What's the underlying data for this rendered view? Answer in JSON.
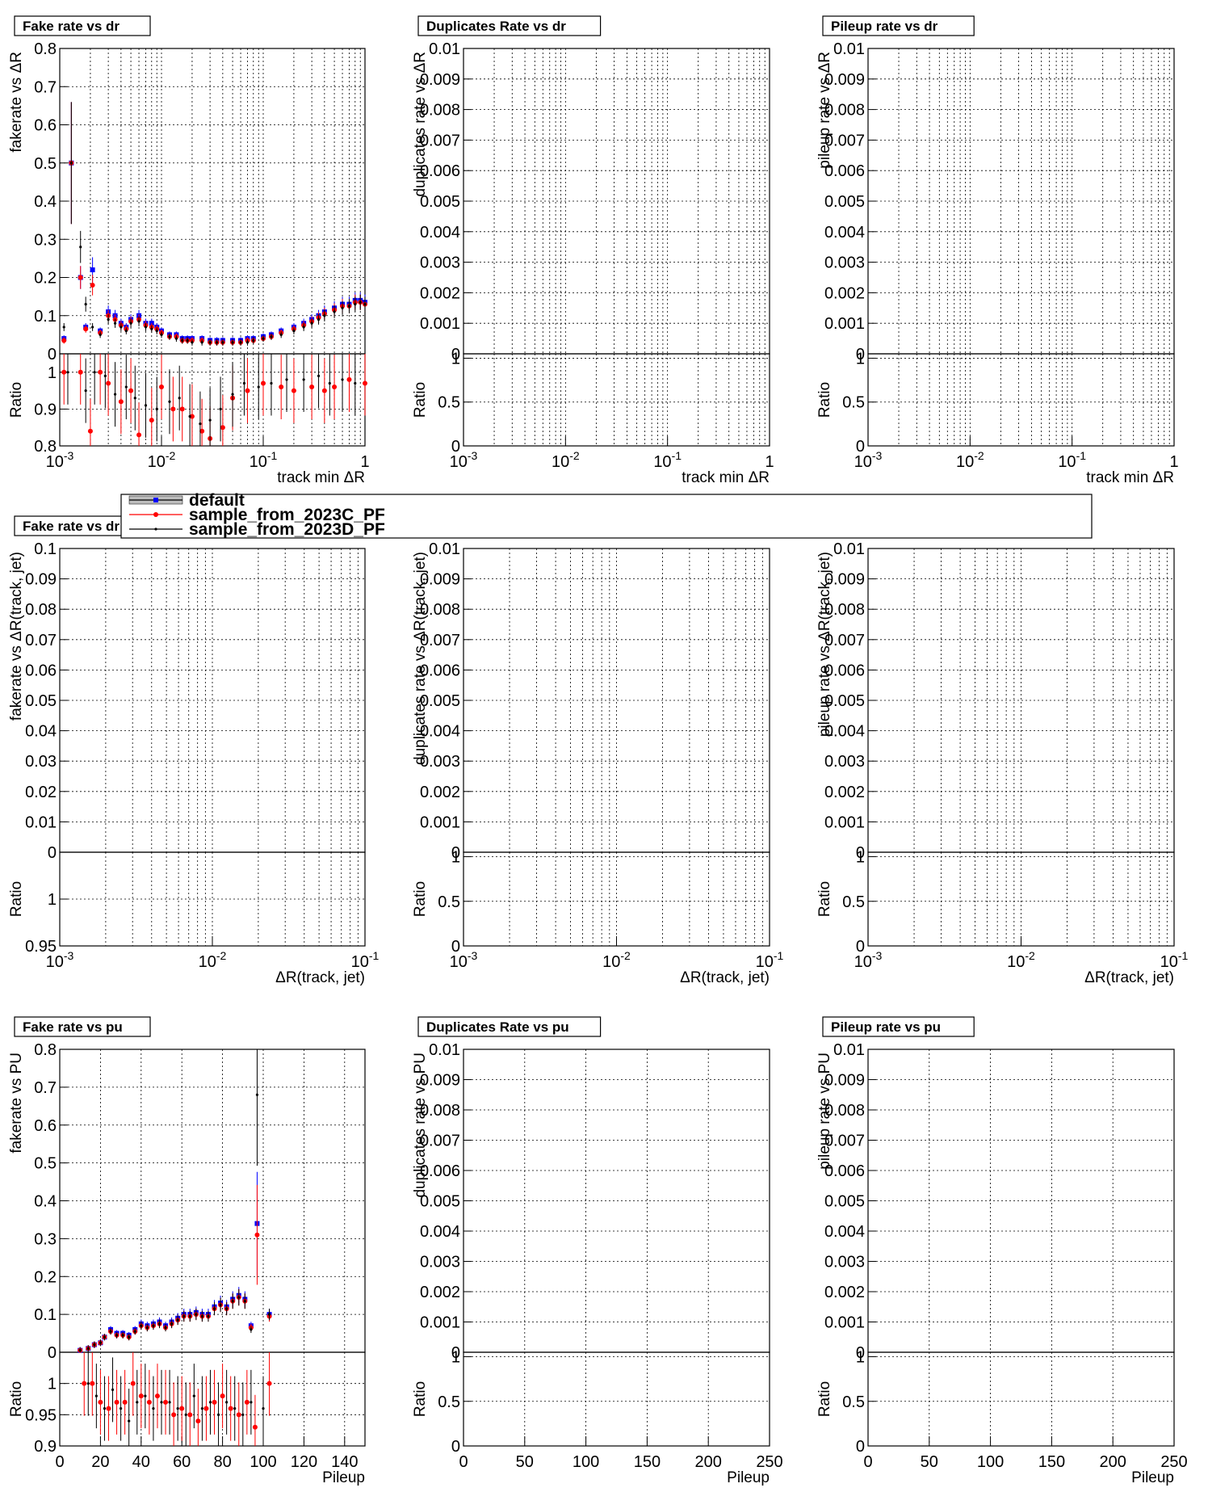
{
  "legend": {
    "entries": [
      "default",
      "sample_from_2023C_PF",
      "sample_from_2023D_PF"
    ]
  },
  "chart_data": [
    {
      "id": "p11",
      "type": "scatter",
      "title": "Fake rate vs dr",
      "xlabel": "track min  ΔR",
      "ylabel": "fakerate vs  ΔR",
      "xlog": true,
      "xlim": [
        0.001,
        1
      ],
      "ylim": [
        0,
        0.8
      ],
      "yticks": [
        0,
        0.1,
        0.2,
        0.3,
        0.4,
        0.5,
        0.6,
        0.7,
        0.8
      ],
      "xticks": [
        "10^-3",
        "10^-2",
        "10^-1",
        "1"
      ],
      "ratio": {
        "ylabel": "Ratio",
        "ylim": [
          0.8,
          1.05
        ],
        "yticks": [
          0.8,
          0.9,
          1
        ]
      },
      "series": [
        {
          "name": "default",
          "color": "#0000ff",
          "x": [
            0.0011,
            0.0013,
            0.0016,
            0.0018,
            0.0021,
            0.0025,
            0.003,
            0.0035,
            0.004,
            0.0045,
            0.005,
            0.006,
            0.007,
            0.008,
            0.009,
            0.01,
            0.012,
            0.014,
            0.016,
            0.018,
            0.02,
            0.025,
            0.03,
            0.035,
            0.04,
            0.05,
            0.06,
            0.07,
            0.08,
            0.1,
            0.12,
            0.15,
            0.2,
            0.25,
            0.3,
            0.35,
            0.4,
            0.5,
            0.6,
            0.7,
            0.8,
            0.9,
            1.0
          ],
          "y": [
            0.04,
            0.5,
            0.2,
            0.07,
            0.22,
            0.06,
            0.11,
            0.1,
            0.08,
            0.07,
            0.09,
            0.1,
            0.08,
            0.08,
            0.07,
            0.06,
            0.05,
            0.05,
            0.04,
            0.04,
            0.04,
            0.04,
            0.035,
            0.035,
            0.035,
            0.035,
            0.035,
            0.04,
            0.04,
            0.045,
            0.05,
            0.06,
            0.07,
            0.08,
            0.09,
            0.1,
            0.11,
            0.12,
            0.13,
            0.13,
            0.14,
            0.14,
            0.135
          ]
        },
        {
          "name": "sample_from_2023C_PF",
          "color": "#ff0000",
          "x": [
            0.0011,
            0.0013,
            0.0016,
            0.0018,
            0.0021,
            0.0025,
            0.003,
            0.0035,
            0.004,
            0.0045,
            0.005,
            0.006,
            0.007,
            0.008,
            0.009,
            0.01,
            0.012,
            0.014,
            0.016,
            0.018,
            0.02,
            0.025,
            0.03,
            0.035,
            0.04,
            0.05,
            0.06,
            0.07,
            0.08,
            0.1,
            0.12,
            0.15,
            0.2,
            0.25,
            0.3,
            0.35,
            0.4,
            0.5,
            0.6,
            0.7,
            0.8,
            0.9,
            1.0
          ],
          "y": [
            0.035,
            0.5,
            0.2,
            0.065,
            0.18,
            0.055,
            0.1,
            0.09,
            0.075,
            0.065,
            0.085,
            0.09,
            0.075,
            0.07,
            0.065,
            0.055,
            0.045,
            0.045,
            0.035,
            0.035,
            0.035,
            0.035,
            0.03,
            0.03,
            0.03,
            0.03,
            0.03,
            0.035,
            0.035,
            0.04,
            0.045,
            0.055,
            0.065,
            0.075,
            0.085,
            0.095,
            0.105,
            0.115,
            0.125,
            0.125,
            0.135,
            0.135,
            0.13
          ]
        },
        {
          "name": "sample_from_2023D_PF",
          "color": "#000000",
          "x": [
            0.0011,
            0.0013,
            0.0016,
            0.0018,
            0.0021,
            0.0025,
            0.003,
            0.0035,
            0.004,
            0.0045,
            0.005,
            0.006,
            0.007,
            0.008,
            0.009,
            0.01,
            0.012,
            0.014,
            0.016,
            0.018,
            0.02,
            0.025,
            0.03,
            0.035,
            0.04,
            0.05,
            0.06,
            0.07,
            0.08,
            0.1,
            0.12,
            0.15,
            0.2,
            0.25,
            0.3,
            0.35,
            0.4,
            0.5,
            0.6,
            0.7,
            0.8,
            0.9,
            1.0
          ],
          "y": [
            0.07,
            0.5,
            0.28,
            0.13,
            0.07,
            0.05,
            0.09,
            0.08,
            0.07,
            0.06,
            0.08,
            0.085,
            0.07,
            0.065,
            0.06,
            0.05,
            0.045,
            0.04,
            0.035,
            0.035,
            0.03,
            0.03,
            0.03,
            0.03,
            0.03,
            0.03,
            0.03,
            0.03,
            0.035,
            0.04,
            0.045,
            0.05,
            0.06,
            0.07,
            0.08,
            0.09,
            0.1,
            0.11,
            0.12,
            0.125,
            0.13,
            0.135,
            0.13
          ]
        }
      ],
      "ratio_series": [
        {
          "name": "sample_from_2023C_PF",
          "color": "#ff0000",
          "x": [
            0.0011,
            0.0016,
            0.002,
            0.0025,
            0.003,
            0.004,
            0.005,
            0.006,
            0.008,
            0.01,
            0.013,
            0.016,
            0.02,
            0.025,
            0.03,
            0.04,
            0.05,
            0.07,
            0.1,
            0.15,
            0.2,
            0.3,
            0.4,
            0.5,
            0.7,
            1.0
          ],
          "y": [
            1.0,
            1.0,
            0.84,
            1.0,
            0.97,
            0.92,
            0.95,
            0.83,
            0.87,
            0.96,
            0.9,
            0.9,
            0.88,
            0.84,
            0.82,
            0.85,
            0.93,
            0.95,
            0.97,
            0.96,
            0.95,
            0.96,
            0.95,
            0.96,
            0.98,
            0.97
          ]
        },
        {
          "name": "sample_from_2023D_PF",
          "color": "#000000",
          "x": [
            0.0012,
            0.0018,
            0.0022,
            0.0028,
            0.0035,
            0.0045,
            0.0055,
            0.007,
            0.009,
            0.012,
            0.015,
            0.019,
            0.024,
            0.03,
            0.038,
            0.05,
            0.065,
            0.09,
            0.12,
            0.17,
            0.25,
            0.35,
            0.45,
            0.6,
            0.8
          ],
          "y": [
            1.0,
            0.95,
            1.0,
            0.99,
            0.94,
            0.96,
            0.93,
            0.91,
            0.9,
            0.92,
            0.93,
            0.88,
            0.86,
            0.87,
            0.9,
            0.94,
            0.97,
            0.96,
            0.97,
            0.98,
            0.98,
            0.99,
            0.97,
            0.98,
            0.97
          ]
        }
      ]
    },
    {
      "id": "p12",
      "type": "scatter",
      "title": "Duplicates Rate vs dr",
      "xlabel": "track min  ΔR",
      "ylabel": "duplicates rate vs  ΔR",
      "xlog": true,
      "xlim": [
        0.001,
        1
      ],
      "ylim": [
        0,
        0.01
      ],
      "yticks": [
        0,
        0.001,
        0.002,
        0.003,
        0.004,
        0.005,
        0.006,
        0.007,
        0.008,
        0.009,
        0.01
      ],
      "xticks": [
        "10^-3",
        "10^-2",
        "10^-1",
        "1"
      ],
      "ratio": {
        "ylabel": "Ratio",
        "ylim": [
          0,
          1.05
        ],
        "yticks": [
          0,
          0.5,
          1
        ]
      },
      "series": []
    },
    {
      "id": "p13",
      "type": "scatter",
      "title": "Pileup rate vs dr",
      "xlabel": "track min  ΔR",
      "ylabel": "pileup rate vs  ΔR",
      "xlog": true,
      "xlim": [
        0.001,
        1
      ],
      "ylim": [
        0,
        0.01
      ],
      "yticks": [
        0,
        0.001,
        0.002,
        0.003,
        0.004,
        0.005,
        0.006,
        0.007,
        0.008,
        0.009,
        0.01
      ],
      "xticks": [
        "10^-3",
        "10^-2",
        "10^-1",
        "1"
      ],
      "ratio": {
        "ylabel": "Ratio",
        "ylim": [
          0,
          1.05
        ],
        "yticks": [
          0,
          0.5,
          1
        ]
      },
      "series": []
    },
    {
      "id": "p21",
      "type": "scatter",
      "title": "Fake rate vs dr",
      "xlabel": "ΔR(track, jet)",
      "ylabel": "fakerate vs  ΔR(track, jet)",
      "xlog": true,
      "xlim": [
        0.001,
        0.1
      ],
      "ylim": [
        0,
        0.1
      ],
      "yticks": [
        0,
        0.01,
        0.02,
        0.03,
        0.04,
        0.05,
        0.06,
        0.07,
        0.08,
        0.09,
        0.1
      ],
      "xticks": [
        "10^-3",
        "10^-2",
        "10^-1"
      ],
      "ratio": {
        "ylabel": "Ratio",
        "ylim": [
          0.95,
          1.05
        ],
        "yticks": [
          0.95,
          1
        ]
      },
      "series": []
    },
    {
      "id": "p22",
      "type": "scatter",
      "title": "Duplicates Rate vs dr",
      "xlabel": "ΔR(track, jet)",
      "ylabel": "duplicates rate vs  ΔR(track, jet)",
      "xlog": true,
      "xlim": [
        0.001,
        0.1
      ],
      "ylim": [
        0,
        0.01
      ],
      "yticks": [
        0,
        0.001,
        0.002,
        0.003,
        0.004,
        0.005,
        0.006,
        0.007,
        0.008,
        0.009,
        0.01
      ],
      "xticks": [
        "10^-3",
        "10^-2",
        "10^-1"
      ],
      "ratio": {
        "ylabel": "Ratio",
        "ylim": [
          0,
          1.05
        ],
        "yticks": [
          0,
          0.5,
          1
        ]
      },
      "series": []
    },
    {
      "id": "p23",
      "type": "scatter",
      "title": "Pileup rate vs dr",
      "xlabel": "ΔR(track, jet)",
      "ylabel": "pileup rate vs  ΔR(track, jet)",
      "xlog": true,
      "xlim": [
        0.001,
        0.1
      ],
      "ylim": [
        0,
        0.01
      ],
      "yticks": [
        0,
        0.001,
        0.002,
        0.003,
        0.004,
        0.005,
        0.006,
        0.007,
        0.008,
        0.009,
        0.01
      ],
      "xticks": [
        "10^-3",
        "10^-2",
        "10^-1"
      ],
      "ratio": {
        "ylabel": "Ratio",
        "ylim": [
          0,
          1.05
        ],
        "yticks": [
          0,
          0.5,
          1
        ]
      },
      "series": []
    },
    {
      "id": "p31",
      "type": "scatter",
      "title": "Fake rate vs pu",
      "xlabel": "Pileup",
      "ylabel": "fakerate vs PU",
      "xlog": false,
      "xlim": [
        0,
        150
      ],
      "ylim": [
        0,
        0.8
      ],
      "yticks": [
        0,
        0.1,
        0.2,
        0.3,
        0.4,
        0.5,
        0.6,
        0.7,
        0.8
      ],
      "xticks": [
        0,
        20,
        40,
        60,
        80,
        100,
        120,
        140
      ],
      "ratio": {
        "ylabel": "Ratio",
        "ylim": [
          0.9,
          1.05
        ],
        "yticks": [
          0.9,
          0.95,
          1
        ]
      },
      "series": [
        {
          "name": "default",
          "color": "#0000ff",
          "x": [
            10,
            14,
            17,
            20,
            22,
            25,
            28,
            31,
            34,
            37,
            40,
            43,
            46,
            49,
            52,
            55,
            58,
            61,
            64,
            67,
            70,
            73,
            76,
            79,
            82,
            85,
            88,
            91,
            94,
            97,
            103
          ],
          "y": [
            0.005,
            0.01,
            0.02,
            0.025,
            0.04,
            0.06,
            0.05,
            0.05,
            0.045,
            0.06,
            0.075,
            0.07,
            0.075,
            0.08,
            0.07,
            0.08,
            0.09,
            0.1,
            0.1,
            0.105,
            0.1,
            0.1,
            0.12,
            0.13,
            0.12,
            0.14,
            0.15,
            0.14,
            0.07,
            0.34,
            0.1
          ]
        },
        {
          "name": "sample_from_2023C_PF",
          "color": "#ff0000",
          "x": [
            10,
            14,
            17,
            20,
            22,
            25,
            28,
            31,
            34,
            37,
            40,
            43,
            46,
            49,
            52,
            55,
            58,
            61,
            64,
            67,
            70,
            73,
            76,
            79,
            82,
            85,
            88,
            91,
            94,
            97,
            103
          ],
          "y": [
            0.005,
            0.01,
            0.02,
            0.025,
            0.04,
            0.055,
            0.045,
            0.045,
            0.04,
            0.055,
            0.07,
            0.065,
            0.07,
            0.075,
            0.065,
            0.075,
            0.085,
            0.095,
            0.095,
            0.1,
            0.095,
            0.095,
            0.115,
            0.125,
            0.115,
            0.135,
            0.145,
            0.135,
            0.065,
            0.31,
            0.095
          ]
        },
        {
          "name": "sample_from_2023D_PF",
          "color": "#000000",
          "x": [
            10,
            14,
            17,
            20,
            22,
            25,
            28,
            31,
            34,
            37,
            40,
            43,
            46,
            49,
            52,
            55,
            58,
            61,
            64,
            67,
            70,
            73,
            76,
            79,
            82,
            85,
            88,
            91,
            94,
            97,
            103
          ],
          "y": [
            0.005,
            0.01,
            0.02,
            0.025,
            0.04,
            0.055,
            0.045,
            0.045,
            0.04,
            0.055,
            0.07,
            0.065,
            0.07,
            0.075,
            0.065,
            0.075,
            0.085,
            0.095,
            0.095,
            0.1,
            0.095,
            0.095,
            0.115,
            0.125,
            0.115,
            0.135,
            0.145,
            0.135,
            0.06,
            0.68,
            0.1
          ]
        }
      ],
      "ratio_series": [
        {
          "name": "sample_from_2023C_PF",
          "color": "#ff0000",
          "x": [
            12,
            16,
            20,
            24,
            28,
            32,
            36,
            40,
            44,
            48,
            52,
            56,
            60,
            64,
            68,
            72,
            76,
            80,
            84,
            88,
            92,
            96,
            103
          ],
          "y": [
            1.0,
            1.0,
            0.97,
            0.96,
            0.97,
            0.97,
            1.0,
            0.98,
            0.97,
            0.98,
            0.97,
            0.95,
            0.96,
            0.95,
            0.94,
            0.96,
            0.97,
            0.98,
            0.96,
            0.95,
            0.97,
            0.93,
            1.0
          ]
        },
        {
          "name": "sample_from_2023D_PF",
          "color": "#000000",
          "x": [
            14,
            18,
            22,
            26,
            30,
            34,
            38,
            42,
            46,
            50,
            54,
            58,
            62,
            66,
            70,
            74,
            78,
            82,
            86,
            90,
            94,
            100
          ],
          "y": [
            1.0,
            0.98,
            0.96,
            0.99,
            0.96,
            0.94,
            0.97,
            0.98,
            0.96,
            0.97,
            0.97,
            0.96,
            0.95,
            0.98,
            0.96,
            0.97,
            0.95,
            0.97,
            0.96,
            0.95,
            0.97,
            0.96
          ]
        }
      ]
    },
    {
      "id": "p32",
      "type": "scatter",
      "title": "Duplicates Rate vs pu",
      "xlabel": "Pileup",
      "ylabel": "duplicates rate vs PU",
      "xlog": false,
      "xlim": [
        0,
        250
      ],
      "ylim": [
        0,
        0.01
      ],
      "yticks": [
        0,
        0.001,
        0.002,
        0.003,
        0.004,
        0.005,
        0.006,
        0.007,
        0.008,
        0.009,
        0.01
      ],
      "xticks": [
        0,
        50,
        100,
        150,
        200,
        250
      ],
      "ratio": {
        "ylabel": "Ratio",
        "ylim": [
          0,
          1.05
        ],
        "yticks": [
          0,
          0.5,
          1
        ]
      },
      "series": []
    },
    {
      "id": "p33",
      "type": "scatter",
      "title": "Pileup rate vs pu",
      "xlabel": "Pileup",
      "ylabel": "pileup rate vs PU",
      "xlog": false,
      "xlim": [
        0,
        250
      ],
      "ylim": [
        0,
        0.01
      ],
      "yticks": [
        0,
        0.001,
        0.002,
        0.003,
        0.004,
        0.005,
        0.006,
        0.007,
        0.008,
        0.009,
        0.01
      ],
      "xticks": [
        0,
        50,
        100,
        150,
        200,
        250
      ],
      "ratio": {
        "ylabel": "Ratio",
        "ylim": [
          0,
          1.05
        ],
        "yticks": [
          0,
          0.5,
          1
        ]
      },
      "series": []
    }
  ]
}
